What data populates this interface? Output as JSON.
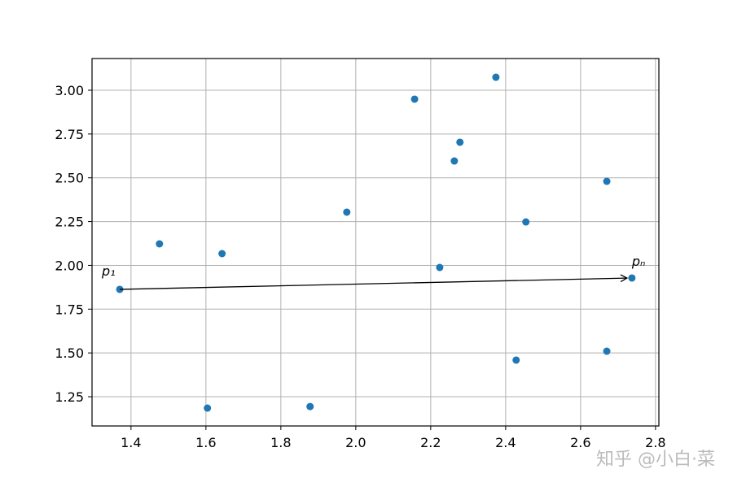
{
  "chart_data": {
    "type": "scatter",
    "x": [
      1.37,
      1.476,
      1.604,
      1.643,
      1.878,
      1.976,
      2.157,
      2.224,
      2.263,
      2.278,
      2.374,
      2.428,
      2.454,
      2.67,
      2.67,
      2.737
    ],
    "values": [
      1.863,
      2.123,
      1.185,
      2.067,
      1.194,
      2.304,
      2.949,
      1.988,
      2.596,
      2.703,
      3.074,
      1.459,
      2.248,
      2.48,
      1.51,
      1.928
    ],
    "color": "#1f77b4",
    "xlim": [
      1.296,
      2.809
    ],
    "ylim": [
      1.083,
      3.181
    ],
    "xticks": [
      1.4,
      1.6,
      1.8,
      {
        "value": 2,
        "label": "2.0"
      },
      2.2,
      2.4,
      2.6,
      2.8
    ],
    "yticks": [
      1.25,
      {
        "value": 1.5,
        "label": "1.50"
      },
      1.75,
      {
        "value": 2,
        "label": "2.00"
      },
      2.25,
      {
        "value": 2.5,
        "label": "2.50"
      },
      2.75,
      {
        "value": 3,
        "label": "3.00"
      }
    ],
    "grid": true,
    "annotations": [
      {
        "text": "p₁"
      },
      {
        "text": "pₙ"
      }
    ],
    "watermark": "知乎 @小白·菜"
  }
}
